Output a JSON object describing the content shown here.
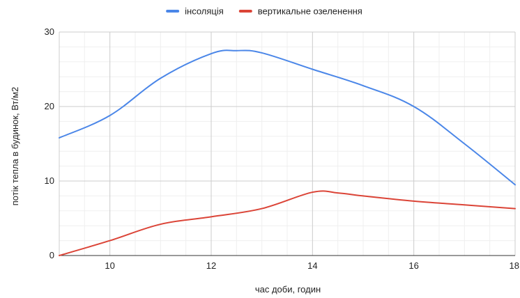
{
  "chart_data": {
    "type": "line",
    "title": "",
    "xlabel": "час доби, годин",
    "ylabel": "потік тепла в будинок, Вт/м2",
    "xlim": [
      9,
      18
    ],
    "ylim": [
      0,
      30
    ],
    "x_ticks": [
      10,
      12,
      14,
      16,
      18
    ],
    "y_ticks": [
      0,
      10,
      20,
      30
    ],
    "grid": true,
    "legend_position": "top",
    "series": [
      {
        "name": "інсоляція",
        "color": "#4a86e8",
        "x": [
          9,
          10,
          11,
          12,
          12.5,
          13,
          14,
          15,
          16,
          17,
          18
        ],
        "y": [
          15.8,
          18.8,
          23.8,
          27.1,
          27.5,
          27.2,
          25.0,
          22.8,
          20.0,
          15.0,
          9.5
        ]
      },
      {
        "name": "вертикальне озеленення",
        "color": "#db4437",
        "x": [
          9,
          10,
          11,
          12,
          13,
          14,
          14.5,
          15,
          16,
          17,
          18
        ],
        "y": [
          0.0,
          2.0,
          4.2,
          5.2,
          6.3,
          8.5,
          8.4,
          8.0,
          7.3,
          6.8,
          6.3
        ]
      }
    ]
  }
}
